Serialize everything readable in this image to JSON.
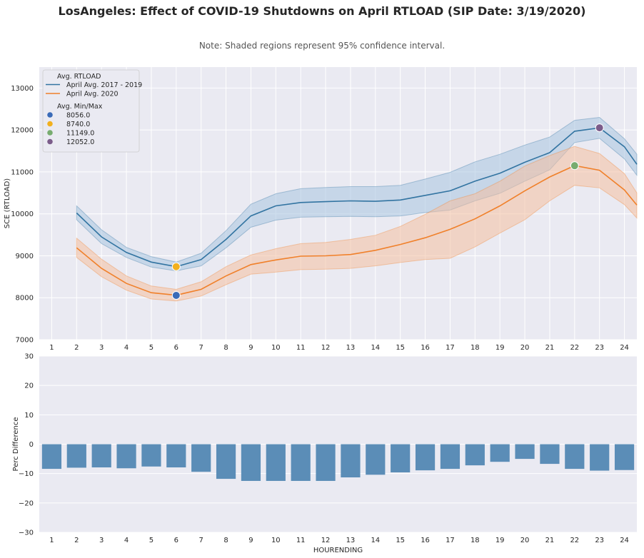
{
  "title": "LosAngeles: Effect of COVID-19 Shutdowns on April RTLOAD (SIP Date: 3/19/2020)",
  "note": "Note: Shaded regions represent 95% confidence interval.",
  "colors": {
    "background": "#EAEAF2",
    "grid": "#FFFFFF",
    "series_2017_2019": "#3274A1",
    "series_2020": "#F0802A",
    "band_2017_2019": "#A8C4E0",
    "band_2020": "#F4BFA0",
    "bars": "#5B8DB7",
    "marker_min_2017_2019": "#3A6BB8",
    "marker_min_2020": "#F2B01E",
    "marker_max_2020": "#77AC6F",
    "marker_max_2017_2019": "#7B5C8A"
  },
  "chart_data": [
    {
      "type": "line",
      "ylabel": "SCE (RTLOAD)",
      "xlabel": "",
      "ylim": [
        7000,
        13500
      ],
      "yticks": [
        7000,
        8000,
        9000,
        10000,
        11000,
        12000,
        13000
      ],
      "xlim": [
        0.5,
        24.5
      ],
      "xticks": [
        1,
        2,
        3,
        4,
        5,
        6,
        7,
        8,
        9,
        10,
        11,
        12,
        13,
        14,
        15,
        16,
        17,
        18,
        19,
        20,
        21,
        22,
        23,
        24
      ],
      "grid": true,
      "legend_position": "top-left",
      "legend": {
        "title_lines": "Avg. RTLOAD",
        "series_entries": [
          "April Avg. 2017 - 2019",
          "April Avg. 2020"
        ],
        "title_markers": "Avg. Min/Max",
        "marker_entries": [
          "8056.0",
          "8740.0",
          "11149.0",
          "12052.0"
        ]
      },
      "series": [
        {
          "name": "April Avg. 2017 - 2019",
          "x": [
            2,
            3,
            4,
            5,
            6,
            7,
            8,
            9,
            10,
            11,
            12,
            13,
            14,
            15,
            16,
            17,
            18,
            19,
            20,
            21,
            22,
            23,
            24,
            24.5
          ],
          "values": [
            10020,
            9450,
            9080,
            8850,
            8740,
            8910,
            9390,
            9950,
            10190,
            10270,
            10290,
            10310,
            10300,
            10330,
            10440,
            10550,
            10780,
            10970,
            11230,
            11460,
            11970,
            12050,
            11600,
            11180
          ],
          "ci_low": [
            9860,
            9290,
            8960,
            8730,
            8640,
            8760,
            9190,
            9680,
            9850,
            9920,
            9930,
            9940,
            9930,
            9950,
            10030,
            10090,
            10310,
            10490,
            10780,
            11050,
            11700,
            11800,
            11310,
            10920
          ],
          "ci_high": [
            10190,
            9620,
            9200,
            8980,
            8850,
            9060,
            9600,
            10230,
            10480,
            10600,
            10630,
            10650,
            10650,
            10680,
            10830,
            10990,
            11240,
            11420,
            11640,
            11830,
            12230,
            12300,
            11790,
            11420
          ]
        },
        {
          "name": "April Avg. 2020",
          "x": [
            2,
            3,
            4,
            5,
            6,
            7,
            8,
            9,
            10,
            11,
            12,
            13,
            14,
            15,
            16,
            17,
            18,
            19,
            20,
            21,
            22,
            23,
            24,
            24.5
          ],
          "values": [
            9190,
            8700,
            8340,
            8120,
            8060,
            8200,
            8520,
            8790,
            8900,
            8990,
            9000,
            9030,
            9130,
            9270,
            9430,
            9630,
            9880,
            10190,
            10550,
            10880,
            11150,
            11040,
            10570,
            10210
          ],
          "ci_low": [
            8960,
            8500,
            8180,
            7970,
            7920,
            8040,
            8310,
            8560,
            8610,
            8670,
            8680,
            8700,
            8760,
            8840,
            8910,
            8940,
            9210,
            9540,
            9860,
            10310,
            10680,
            10620,
            10220,
            9900
          ],
          "ci_high": [
            9420,
            8920,
            8520,
            8280,
            8200,
            8380,
            8740,
            9020,
            9170,
            9290,
            9320,
            9390,
            9490,
            9700,
            9990,
            10310,
            10480,
            10780,
            11140,
            11390,
            11610,
            11440,
            10960,
            10500
          ]
        }
      ],
      "markers": [
        {
          "label": "8056.0",
          "x": 6,
          "y": 8056
        },
        {
          "label": "8740.0",
          "x": 6,
          "y": 8740
        },
        {
          "label": "11149.0",
          "x": 22,
          "y": 11149
        },
        {
          "label": "12052.0",
          "x": 23,
          "y": 12052
        }
      ]
    },
    {
      "type": "bar",
      "xlabel": "HOURENDING",
      "ylabel": "Perc Difference",
      "ylim": [
        -30,
        30
      ],
      "yticks": [
        -30,
        -20,
        -10,
        0,
        10,
        20,
        30
      ],
      "yticklabels": [
        "−30",
        "−20",
        "−10",
        "0",
        "10",
        "20",
        "30"
      ],
      "grid": true,
      "categories": [
        "1",
        "2",
        "3",
        "4",
        "5",
        "6",
        "7",
        "8",
        "9",
        "10",
        "11",
        "12",
        "13",
        "14",
        "15",
        "16",
        "17",
        "18",
        "19",
        "20",
        "21",
        "22",
        "23",
        "24"
      ],
      "values": [
        -8.4,
        -8.0,
        -7.9,
        -8.2,
        -7.6,
        -7.9,
        -9.4,
        -11.8,
        -12.5,
        -12.5,
        -12.5,
        -12.5,
        -11.3,
        -10.4,
        -9.6,
        -8.9,
        -8.4,
        -7.2,
        -6.0,
        -5.0,
        -6.7,
        -8.4,
        -9.0,
        -8.8
      ]
    }
  ]
}
